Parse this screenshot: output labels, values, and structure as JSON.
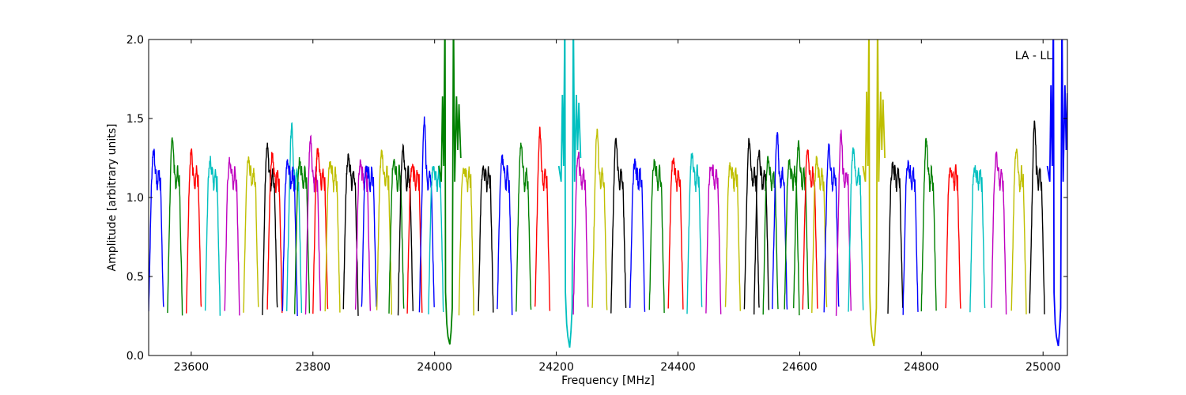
{
  "chart_data": {
    "type": "line",
    "title": "",
    "xlabel": "Frequency [MHz]",
    "ylabel": "Amplitude [arbitrary units]",
    "xlim": [
      23530,
      25040
    ],
    "ylim": [
      0.0,
      2.0
    ],
    "xticks": [
      23600,
      23800,
      24000,
      24200,
      24400,
      24600,
      24800,
      25000
    ],
    "yticks": [
      0.0,
      0.5,
      1.0,
      1.5,
      2.0
    ],
    "xtick_labels": [
      "23600",
      "23800",
      "24000",
      "24200",
      "24400",
      "24600",
      "24800",
      "25000"
    ],
    "ytick_labels": [
      "0.0",
      "0.5",
      "1.0",
      "1.5",
      "2.0"
    ],
    "grid": false,
    "annotation": "LA - LL",
    "colors": [
      "#0000ff",
      "#008000",
      "#ff0000",
      "#00bfbf",
      "#bf00bf",
      "#bfbf00",
      "#000000"
    ],
    "channel_width_mhz": 31.25,
    "channels": [
      {
        "start": 23530,
        "peak": 1.3,
        "color": "#0000ff"
      },
      {
        "start": 23561,
        "peak": 1.38,
        "color": "#008000"
      },
      {
        "start": 23592,
        "peak": 1.29,
        "color": "#ff0000"
      },
      {
        "start": 23623,
        "peak": 1.24,
        "color": "#00bfbf"
      },
      {
        "start": 23655,
        "peak": 1.23,
        "color": "#bf00bf"
      },
      {
        "start": 23686,
        "peak": 1.26,
        "color": "#bfbf00"
      },
      {
        "start": 23717,
        "peak": 1.33,
        "color": "#000000"
      },
      {
        "start": 23725,
        "peak": 1.27,
        "color": "#ff0000"
      },
      {
        "start": 23757,
        "peak": 1.45,
        "color": "#00bfbf"
      },
      {
        "start": 23750,
        "peak": 1.22,
        "color": "#0000ff"
      },
      {
        "start": 23770,
        "peak": 1.23,
        "color": "#008000"
      },
      {
        "start": 23788,
        "peak": 1.37,
        "color": "#bf00bf"
      },
      {
        "start": 23800,
        "peak": 1.3,
        "color": "#ff0000"
      },
      {
        "start": 23820,
        "peak": 1.22,
        "color": "#bfbf00"
      },
      {
        "start": 23850,
        "peak": 1.26,
        "color": "#000000"
      },
      {
        "start": 23870,
        "peak": 1.22,
        "color": "#bf00bf"
      },
      {
        "start": 23880,
        "peak": 1.18,
        "color": "#0000ff"
      },
      {
        "start": 23905,
        "peak": 1.29,
        "color": "#bfbf00"
      },
      {
        "start": 23925,
        "peak": 1.24,
        "color": "#008000"
      },
      {
        "start": 23940,
        "peak": 1.32,
        "color": "#000000"
      },
      {
        "start": 23955,
        "peak": 1.2,
        "color": "#ff0000"
      },
      {
        "start": 23975,
        "peak": 1.49,
        "color": "#0000ff"
      },
      {
        "start": 23990,
        "peak": 1.2,
        "color": "#00bfbf"
      },
      {
        "start": 24040,
        "peak": 1.18,
        "color": "#bfbf00"
      },
      {
        "start": 24072,
        "peak": 1.18,
        "color": "#000000"
      },
      {
        "start": 24103,
        "peak": 1.25,
        "color": "#0000ff"
      },
      {
        "start": 24134,
        "peak": 1.34,
        "color": "#008000"
      },
      {
        "start": 24165,
        "peak": 1.43,
        "color": "#ff0000"
      },
      {
        "start": 24228,
        "peak": 1.28,
        "color": "#bf00bf"
      },
      {
        "start": 24259,
        "peak": 1.43,
        "color": "#bfbf00"
      },
      {
        "start": 24290,
        "peak": 1.36,
        "color": "#000000"
      },
      {
        "start": 24321,
        "peak": 1.22,
        "color": "#0000ff"
      },
      {
        "start": 24353,
        "peak": 1.23,
        "color": "#008000"
      },
      {
        "start": 24384,
        "peak": 1.24,
        "color": "#ff0000"
      },
      {
        "start": 24415,
        "peak": 1.28,
        "color": "#00bfbf"
      },
      {
        "start": 24446,
        "peak": 1.2,
        "color": "#bf00bf"
      },
      {
        "start": 24478,
        "peak": 1.21,
        "color": "#bfbf00"
      },
      {
        "start": 24509,
        "peak": 1.37,
        "color": "#000000"
      },
      {
        "start": 24525,
        "peak": 1.29,
        "color": "#000000"
      },
      {
        "start": 24540,
        "peak": 1.24,
        "color": "#008000"
      },
      {
        "start": 24555,
        "peak": 1.4,
        "color": "#0000ff"
      },
      {
        "start": 24575,
        "peak": 1.23,
        "color": "#008000"
      },
      {
        "start": 24590,
        "peak": 1.34,
        "color": "#008000"
      },
      {
        "start": 24605,
        "peak": 1.29,
        "color": "#ff0000"
      },
      {
        "start": 24620,
        "peak": 1.24,
        "color": "#bfbf00"
      },
      {
        "start": 24640,
        "peak": 1.32,
        "color": "#0000ff"
      },
      {
        "start": 24660,
        "peak": 1.4,
        "color": "#bf00bf"
      },
      {
        "start": 24680,
        "peak": 1.3,
        "color": "#00bfbf"
      },
      {
        "start": 24745,
        "peak": 1.21,
        "color": "#000000"
      },
      {
        "start": 24770,
        "peak": 1.22,
        "color": "#0000ff"
      },
      {
        "start": 24800,
        "peak": 1.37,
        "color": "#008000"
      },
      {
        "start": 24840,
        "peak": 1.18,
        "color": "#ff0000"
      },
      {
        "start": 24880,
        "peak": 1.18,
        "color": "#00bfbf"
      },
      {
        "start": 24915,
        "peak": 1.27,
        "color": "#bf00bf"
      },
      {
        "start": 24948,
        "peak": 1.31,
        "color": "#bfbf00"
      },
      {
        "start": 24978,
        "peak": 1.47,
        "color": "#000000"
      }
    ],
    "spikes": [
      {
        "center": 24025,
        "color": "#008000",
        "low": 0.07,
        "high": 2.0,
        "side": 1.64
      },
      {
        "center": 24222,
        "color": "#00bfbf",
        "low": 0.05,
        "high": 2.0,
        "side": 1.65
      },
      {
        "center": 24722,
        "color": "#bfbf00",
        "low": 0.06,
        "high": 2.0,
        "side": 1.67
      },
      {
        "center": 25025,
        "color": "#0000ff",
        "low": 0.06,
        "high": 2.0,
        "side": 1.71
      }
    ]
  }
}
